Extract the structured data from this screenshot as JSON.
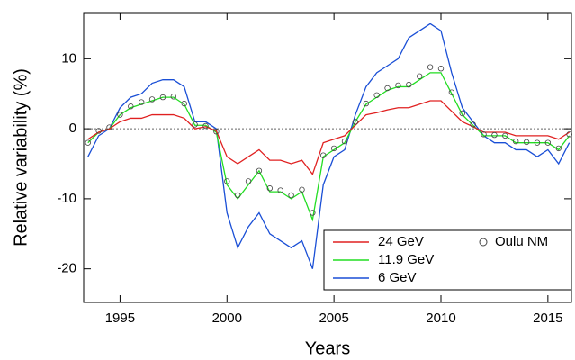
{
  "chart_data": {
    "type": "line",
    "x_label": "Years",
    "y_label": "Relative variability (%)",
    "x": [
      1993.5,
      1994,
      1994.5,
      1995,
      1995.5,
      1996,
      1996.5,
      1997,
      1997.5,
      1998,
      1998.5,
      1999,
      1999.5,
      2000,
      2000.5,
      2001,
      2001.5,
      2002,
      2002.5,
      2003,
      2003.5,
      2004,
      2004.5,
      2005,
      2005.5,
      2006,
      2006.5,
      2007,
      2007.5,
      2008,
      2008.5,
      2009,
      2009.5,
      2010,
      2010.5,
      2011,
      2011.5,
      2012,
      2012.5,
      2013,
      2013.5,
      2014,
      2014.5,
      2015,
      2015.5,
      2016
    ],
    "series": [
      {
        "name": "24 GeV",
        "color": "#e02020",
        "kind": "line",
        "values": [
          -1.5,
          -0.5,
          0,
          1,
          1.5,
          1.5,
          2,
          2,
          2,
          1.5,
          0,
          0.3,
          -0.3,
          -4,
          -5,
          -4,
          -3,
          -4.5,
          -4.5,
          -5,
          -4.5,
          -6.5,
          -2,
          -1.5,
          -1,
          0.5,
          2,
          2.3,
          2.7,
          3,
          3,
          3.5,
          4,
          4,
          2.5,
          1,
          0.3,
          -0.5,
          -0.5,
          -0.5,
          -1,
          -1,
          -1,
          -1,
          -1.5,
          -0.5
        ]
      },
      {
        "name": "11.9 GeV",
        "color": "#22dd22",
        "kind": "line",
        "values": [
          -2,
          -0.5,
          0,
          2,
          3,
          3.5,
          4,
          4.5,
          4.5,
          3.5,
          0.5,
          0.5,
          -0.5,
          -8,
          -10,
          -8,
          -6,
          -9,
          -9,
          -10,
          -9,
          -13,
          -4,
          -3,
          -2,
          1,
          3.5,
          4.5,
          5.5,
          6,
          6,
          7,
          8,
          8,
          5,
          2,
          0.5,
          -1,
          -1,
          -1,
          -2,
          -2,
          -2,
          -2,
          -3,
          -1
        ]
      },
      {
        "name": "6 GeV",
        "color": "#1a4fd6",
        "kind": "line",
        "values": [
          -4,
          -1,
          0,
          3,
          4.5,
          5,
          6.5,
          7,
          7,
          6,
          1,
          1,
          0,
          -12,
          -17,
          -14,
          -12,
          -15,
          -16,
          -17,
          -16,
          -20,
          -8,
          -4,
          -3,
          2,
          6,
          8,
          9,
          10,
          13,
          14,
          15,
          14,
          8,
          3,
          1,
          -1,
          -2,
          -2,
          -3,
          -3,
          -4,
          -3,
          -5,
          -2
        ]
      },
      {
        "name": "Oulu NM",
        "color": "#444444",
        "kind": "scatter",
        "values": [
          -2,
          -0.3,
          0.2,
          2,
          3.2,
          3.8,
          4.2,
          4.5,
          4.6,
          3.6,
          0.6,
          0.4,
          -0.4,
          -7.5,
          -9.5,
          -7.5,
          -6,
          -8.5,
          -8.8,
          -9.5,
          -8.7,
          -12,
          -3.8,
          -2.8,
          -1.8,
          1,
          3.6,
          4.8,
          5.8,
          6.2,
          6.3,
          7.5,
          8.8,
          8.6,
          5.2,
          2.2,
          0.6,
          -0.8,
          -0.9,
          -1,
          -1.8,
          -1.9,
          -2,
          -2,
          -2.8,
          -0.8
        ]
      }
    ],
    "xlim": [
      1993.3,
      2016.1
    ],
    "ylim": [
      -24.8,
      16.6
    ],
    "xticks": [
      1995,
      2000,
      2005,
      2010,
      2015
    ],
    "yticks": [
      -20,
      -10,
      0,
      10
    ],
    "reference_line": 0,
    "legend": "lower right"
  }
}
